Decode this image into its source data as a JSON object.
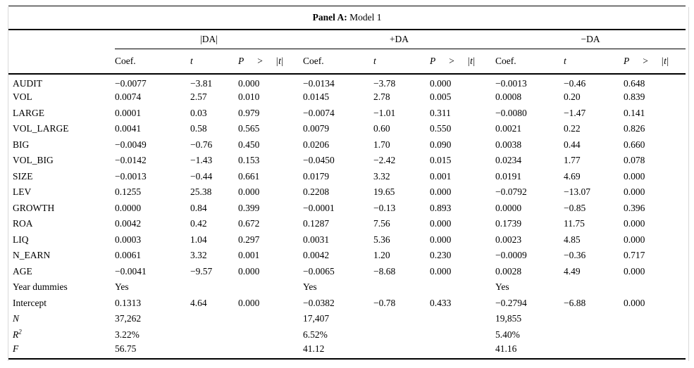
{
  "panel": {
    "label": "Panel A:",
    "model": "Model 1"
  },
  "table": {
    "groups": [
      {
        "name": "|DA|"
      },
      {
        "name": "+DA"
      },
      {
        "name": "−DA"
      }
    ],
    "subheaders": {
      "coef": "Coef.",
      "t": "t",
      "p": "P",
      "gt": ">",
      "bar": "|",
      "t_letter": "t"
    },
    "rows": [
      {
        "label": "AUDIT",
        "italic": false,
        "cells": [
          "−0.0077",
          "−3.81",
          "0.000",
          "−0.0134",
          "−3.78",
          "0.000",
          "−0.0013",
          "−0.46",
          "0.648"
        ]
      },
      {
        "label": "VOL",
        "italic": false,
        "cells": [
          "0.0074",
          "2.57",
          "0.010",
          "0.0145",
          "2.78",
          "0.005",
          "0.0008",
          "0.20",
          "0.839"
        ]
      },
      {
        "label": "LARGE",
        "italic": false,
        "cells": [
          "0.0001",
          "0.03",
          "0.979",
          "−0.0074",
          "−1.01",
          "0.311",
          "−0.0080",
          "−1.47",
          "0.141"
        ]
      },
      {
        "label": "VOL_LARGE",
        "italic": false,
        "cells": [
          "0.0041",
          "0.58",
          "0.565",
          "0.0079",
          "0.60",
          "0.550",
          "0.0021",
          "0.22",
          "0.826"
        ]
      },
      {
        "label": "BIG",
        "italic": false,
        "cells": [
          "−0.0049",
          "−0.76",
          "0.450",
          "0.0206",
          "1.70",
          "0.090",
          "0.0038",
          "0.44",
          "0.660"
        ]
      },
      {
        "label": "VOL_BIG",
        "italic": false,
        "cells": [
          "−0.0142",
          "−1.43",
          "0.153",
          "−0.0450",
          "−2.42",
          "0.015",
          "0.0234",
          "1.77",
          "0.078"
        ]
      },
      {
        "label": "SIZE",
        "italic": false,
        "cells": [
          "−0.0013",
          "−0.44",
          "0.661",
          "0.0179",
          "3.32",
          "0.001",
          "0.0191",
          "4.69",
          "0.000"
        ]
      },
      {
        "label": "LEV",
        "italic": false,
        "cells": [
          "0.1255",
          "25.38",
          "0.000",
          "0.2208",
          "19.65",
          "0.000",
          "−0.0792",
          "−13.07",
          "0.000"
        ]
      },
      {
        "label": "GROWTH",
        "italic": false,
        "cells": [
          "0.0000",
          "0.84",
          "0.399",
          "−0.0001",
          "−0.13",
          "0.893",
          "0.0000",
          "−0.85",
          "0.396"
        ]
      },
      {
        "label": "ROA",
        "italic": false,
        "cells": [
          "0.0042",
          "0.42",
          "0.672",
          "0.1287",
          "7.56",
          "0.000",
          "0.1739",
          "11.75",
          "0.000"
        ]
      },
      {
        "label": "LIQ",
        "italic": false,
        "cells": [
          "0.0003",
          "1.04",
          "0.297",
          "0.0031",
          "5.36",
          "0.000",
          "0.0023",
          "4.85",
          "0.000"
        ]
      },
      {
        "label": "N_EARN",
        "italic": false,
        "cells": [
          "0.0061",
          "3.32",
          "0.001",
          "0.0042",
          "1.20",
          "0.230",
          "−0.0009",
          "−0.36",
          "0.717"
        ]
      },
      {
        "label": "AGE",
        "italic": false,
        "cells": [
          "−0.0041",
          "−9.57",
          "0.000",
          "−0.0065",
          "−8.68",
          "0.000",
          "0.0028",
          "4.49",
          "0.000"
        ]
      },
      {
        "label": "Year dummies",
        "italic": false,
        "cells": [
          "Yes",
          "",
          "",
          "Yes",
          "",
          "",
          "Yes",
          "",
          ""
        ]
      },
      {
        "label": "Intercept",
        "italic": false,
        "cells": [
          "0.1313",
          "4.64",
          "0.000",
          "−0.0382",
          "−0.78",
          "0.433",
          "−0.2794",
          "−6.88",
          "0.000"
        ]
      },
      {
        "label": "N",
        "italic": true,
        "cells": [
          "37,262",
          "",
          "",
          "17,407",
          "",
          "",
          "19,855",
          "",
          ""
        ]
      },
      {
        "label": "R",
        "italic": true,
        "sup": "2",
        "cells": [
          "3.22%",
          "",
          "",
          "6.52%",
          "",
          "",
          "5.40%",
          "",
          ""
        ]
      },
      {
        "label": "F",
        "italic": true,
        "cells": [
          "56.75",
          "",
          "",
          "41.12",
          "",
          "",
          "41.16",
          "",
          ""
        ]
      }
    ]
  }
}
